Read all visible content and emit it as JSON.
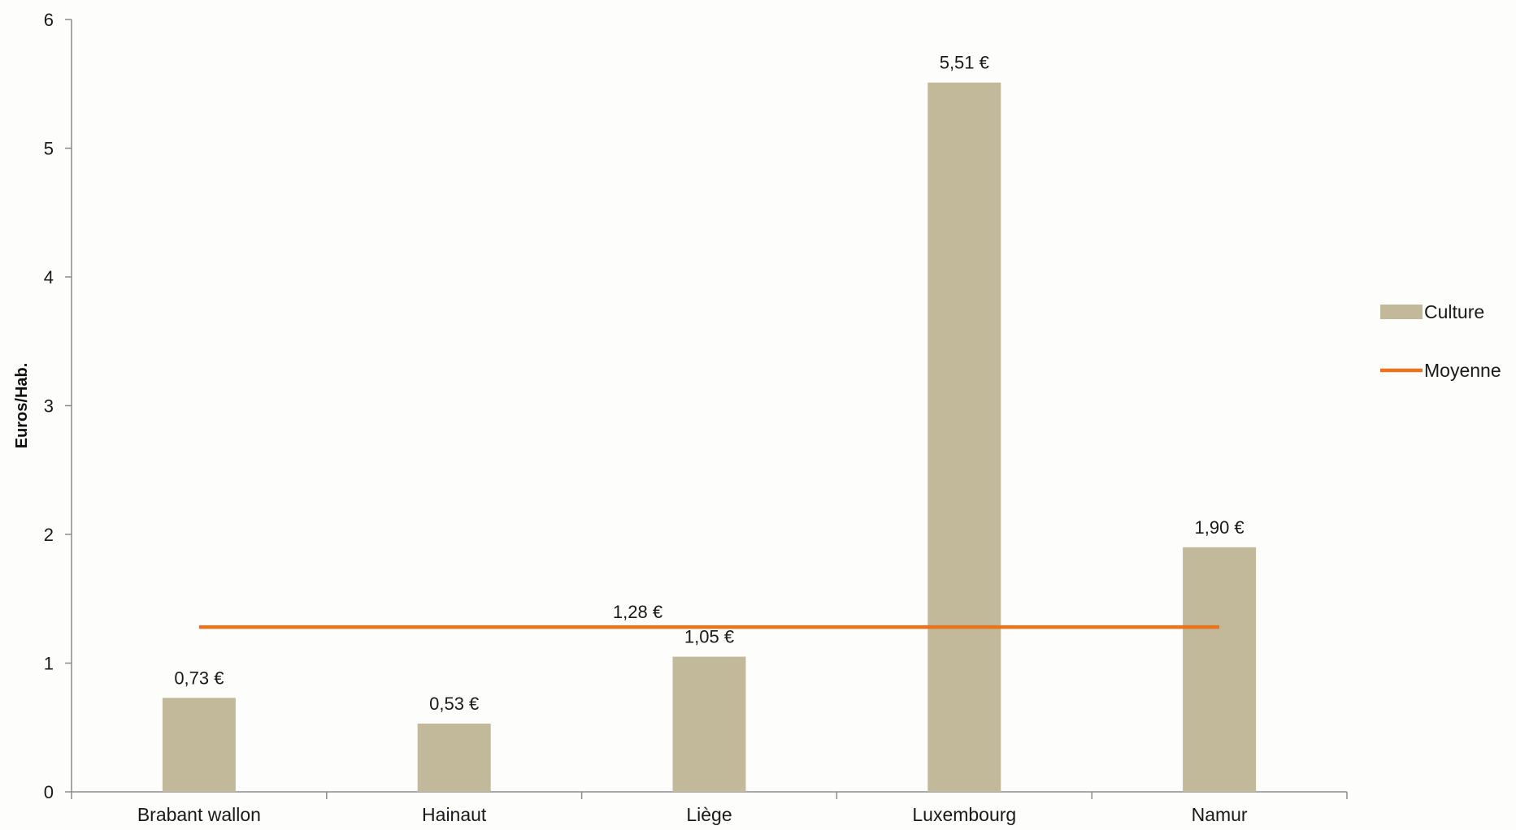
{
  "chart_data": {
    "type": "bar",
    "categories": [
      "Brabant wallon",
      "Hainaut",
      "Liège",
      "Luxembourg",
      "Namur"
    ],
    "series": [
      {
        "name": "Culture",
        "type": "bar",
        "values": [
          0.73,
          0.53,
          1.05,
          5.51,
          1.9
        ],
        "data_labels": [
          "0,73 €",
          "0,53 €",
          "1,05 €",
          "5,51 €",
          "1,90 €"
        ],
        "color": "#c2b99a"
      },
      {
        "name": "Moyenne",
        "type": "line",
        "value": 1.28,
        "data_label": "1,28 €",
        "color": "#e8741e"
      }
    ],
    "title": "",
    "xlabel": "",
    "ylabel": "Euros/Hab.",
    "ylim": [
      0,
      6
    ],
    "yticks": [
      0,
      1,
      2,
      3,
      4,
      5,
      6
    ],
    "grid": false,
    "legend_position": "right"
  }
}
